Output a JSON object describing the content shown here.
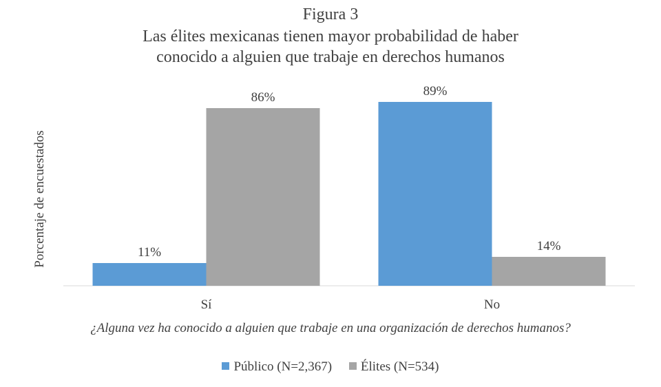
{
  "chart_data": {
    "type": "bar",
    "title": "Figura 3",
    "subtitle": [
      "Las élites mexicanas tienen mayor probabilidad de haber",
      "conocido a alguien que trabaje en derechos humanos"
    ],
    "xlabel": "¿Alguna vez ha conocido a alguien que trabaje en una organización de derechos humanos?",
    "ylabel": "Porcentaje de encuestados",
    "categories": [
      "Sí",
      "No"
    ],
    "series": [
      {
        "name": "Público (N=2,367)",
        "color": "#5b9bd5",
        "values": [
          11,
          89
        ],
        "labels": [
          "11%",
          "89%"
        ]
      },
      {
        "name": "Élites (N=534)",
        "color": "#a5a5a5",
        "values": [
          86,
          14
        ],
        "labels": [
          "86%",
          "14%"
        ]
      }
    ],
    "ylim": [
      0,
      100
    ],
    "grid": false,
    "legend": "bottom"
  }
}
